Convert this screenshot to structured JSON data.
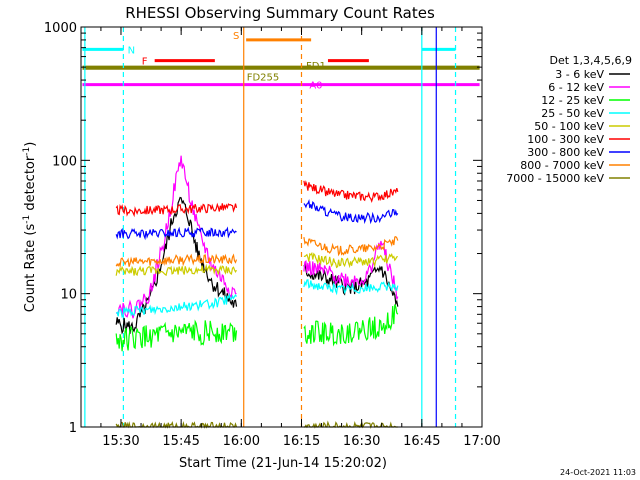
{
  "chart_data": {
    "type": "line",
    "title": "RHESSI Observing Summary Count Rates",
    "xlabel": "Start Time (21-Jun-14 15:20:02)",
    "ylabel": "Count Rate (s",
    "ylabel_sup1": "-1",
    "ylabel_mid": " detector",
    "ylabel_sup2": "-1",
    "ylabel_end": ")",
    "y_scale": "log",
    "xlim": [
      "15:20:02",
      "17:00"
    ],
    "ylim": [
      1,
      1000
    ],
    "x_ticks": [
      "15:30",
      "15:45",
      "16:00",
      "16:15",
      "16:30",
      "16:45",
      "17:00"
    ],
    "y_ticks": [
      "1",
      "10",
      "100",
      "1000"
    ],
    "footer_date": "24-Oct-2021 11:03",
    "legend_title": "Det 1,3,4,5,6,9",
    "series": [
      {
        "name": "3 - 6 keV",
        "color": "#000000",
        "seg1": [
          [
            15.48,
            6
          ],
          [
            15.55,
            5.5
          ],
          [
            15.62,
            9
          ],
          [
            15.68,
            20
          ],
          [
            15.72,
            40
          ],
          [
            15.75,
            50
          ],
          [
            15.78,
            38
          ],
          [
            15.82,
            20
          ],
          [
            15.88,
            12
          ],
          [
            15.95,
            9
          ],
          [
            15.98,
            8
          ]
        ],
        "seg2": [
          [
            16.26,
            15
          ],
          [
            16.35,
            13
          ],
          [
            16.45,
            11
          ],
          [
            16.52,
            12
          ],
          [
            16.58,
            16
          ],
          [
            16.65,
            8
          ]
        ]
      },
      {
        "name": "6 - 12 keV",
        "color": "#ff00ff",
        "seg1": [
          [
            15.48,
            8
          ],
          [
            15.55,
            7.5
          ],
          [
            15.62,
            10
          ],
          [
            15.68,
            25
          ],
          [
            15.72,
            60
          ],
          [
            15.75,
            105
          ],
          [
            15.78,
            60
          ],
          [
            15.82,
            30
          ],
          [
            15.88,
            16
          ],
          [
            15.95,
            11
          ],
          [
            15.98,
            10
          ]
        ],
        "seg2": [
          [
            16.26,
            16
          ],
          [
            16.35,
            14.5
          ],
          [
            16.45,
            12.5
          ],
          [
            16.52,
            13
          ],
          [
            16.58,
            25
          ],
          [
            16.65,
            9.5
          ]
        ]
      },
      {
        "name": "12 - 25 keV",
        "color": "#00ff00",
        "seg1": [
          [
            15.48,
            4.5
          ],
          [
            15.6,
            4.7
          ],
          [
            15.75,
            5
          ],
          [
            15.9,
            5.2
          ],
          [
            15.98,
            5.3
          ]
        ],
        "seg2": [
          [
            16.26,
            5.2
          ],
          [
            16.4,
            5
          ],
          [
            16.55,
            5.5
          ],
          [
            16.65,
            7
          ]
        ]
      },
      {
        "name": "25 - 50 keV",
        "color": "#00ffff",
        "seg1": [
          [
            15.48,
            7.2
          ],
          [
            15.6,
            7.5
          ],
          [
            15.75,
            8
          ],
          [
            15.9,
            8.5
          ],
          [
            15.98,
            9.5
          ]
        ],
        "seg2": [
          [
            16.26,
            12
          ],
          [
            16.4,
            10.8
          ],
          [
            16.55,
            11
          ],
          [
            16.65,
            11.5
          ]
        ]
      },
      {
        "name": "50 - 100 keV",
        "color": "#cccc00",
        "seg1": [
          [
            15.48,
            14.5
          ],
          [
            15.6,
            14.8
          ],
          [
            15.75,
            15
          ],
          [
            15.9,
            15
          ],
          [
            15.98,
            15
          ]
        ],
        "seg2": [
          [
            16.26,
            19
          ],
          [
            16.4,
            17
          ],
          [
            16.55,
            17.5
          ],
          [
            16.65,
            19
          ]
        ]
      },
      {
        "name": "100 - 300 keV",
        "color": "#ff0000",
        "seg1": [
          [
            15.48,
            42
          ],
          [
            15.6,
            42
          ],
          [
            15.75,
            43
          ],
          [
            15.9,
            44
          ],
          [
            15.98,
            44
          ]
        ],
        "seg2": [
          [
            16.26,
            65
          ],
          [
            16.4,
            55
          ],
          [
            16.55,
            53
          ],
          [
            16.65,
            58
          ]
        ]
      },
      {
        "name": "300 - 800 keV",
        "color": "#0000ff",
        "seg1": [
          [
            15.48,
            28
          ],
          [
            15.6,
            28
          ],
          [
            15.75,
            28.5
          ],
          [
            15.9,
            29
          ],
          [
            15.98,
            29
          ]
        ],
        "seg2": [
          [
            16.26,
            48
          ],
          [
            16.4,
            38
          ],
          [
            16.55,
            37
          ],
          [
            16.65,
            40
          ]
        ]
      },
      {
        "name": "800 - 7000 keV",
        "color": "#ff8000",
        "seg1": [
          [
            15.48,
            17
          ],
          [
            15.6,
            17.5
          ],
          [
            15.75,
            18
          ],
          [
            15.9,
            18
          ],
          [
            15.98,
            18
          ]
        ],
        "seg2": [
          [
            16.26,
            25
          ],
          [
            16.4,
            21
          ],
          [
            16.55,
            22
          ],
          [
            16.65,
            25
          ]
        ]
      },
      {
        "name": "7000 - 15000 keV",
        "color": "#808000",
        "seg1": [
          [
            15.48,
            1
          ],
          [
            15.98,
            1
          ]
        ],
        "seg2": [
          [
            16.26,
            1
          ],
          [
            16.65,
            1
          ]
        ]
      }
    ],
    "flags": [
      {
        "label": "N",
        "color": "#00ffff",
        "level": 680,
        "x0": 15.34,
        "x1": 15.51,
        "x2": 16.75,
        "x3": 16.89
      },
      {
        "label": "F",
        "color": "#ff0000",
        "level": 560,
        "x0": 15.64,
        "x1": 15.89
      },
      {
        "label": "S",
        "color": "#ff8000",
        "level": 800,
        "x0": 16.02,
        "x1": 16.29
      },
      {
        "label": "",
        "color": "#ff0000",
        "level": 560,
        "x0": 16.36,
        "x1": 16.53
      },
      {
        "label": "FD1",
        "color": "#808000",
        "level": 500,
        "x0": 15.34,
        "x1": 16.99
      },
      {
        "label": "FD255",
        "color": "#808000",
        "level": 490,
        "x0": 15.34,
        "x1": 16.99
      },
      {
        "label": "A0",
        "color": "#ff00ff",
        "level": 370,
        "x0": 15.34,
        "x1": 16.99
      }
    ],
    "vlines": [
      {
        "x": 15.51,
        "color": "#00ffff",
        "style": "dashed"
      },
      {
        "x": 15.35,
        "color": "#00ffff",
        "style": "solid"
      },
      {
        "x": 16.75,
        "color": "#00ffff",
        "style": "solid"
      },
      {
        "x": 16.89,
        "color": "#00ffff",
        "style": "dashed"
      },
      {
        "x": 16.01,
        "color": "#ff8000",
        "style": "solid"
      },
      {
        "x": 16.25,
        "color": "#ff8000",
        "style": "dashed"
      },
      {
        "x": 16.81,
        "color": "#0000ff",
        "style": "solid"
      }
    ]
  }
}
